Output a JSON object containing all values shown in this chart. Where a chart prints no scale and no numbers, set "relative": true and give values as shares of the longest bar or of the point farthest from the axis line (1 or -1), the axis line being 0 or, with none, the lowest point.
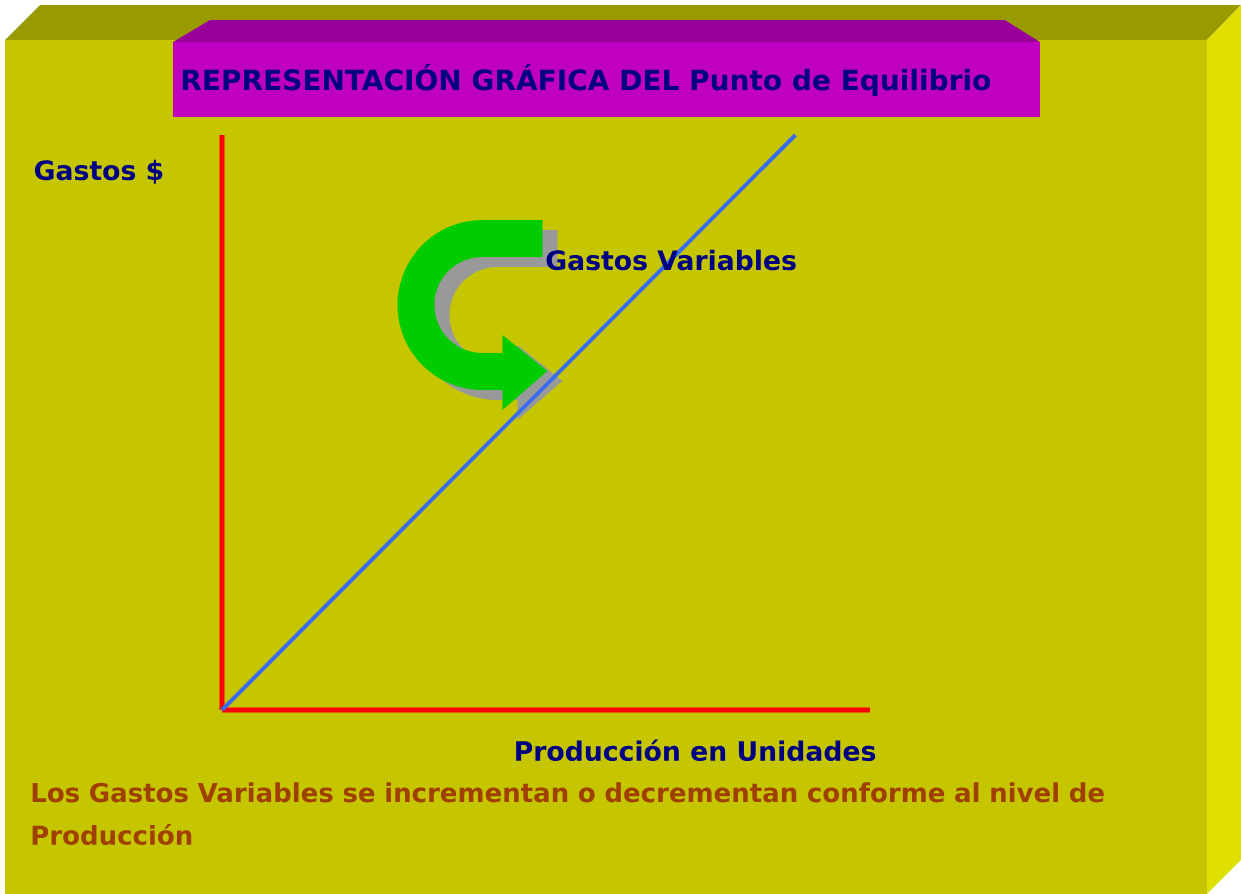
{
  "chart_data": {
    "type": "line",
    "title": "REPRESENTACIÓN GRÁFICA DEL Punto de Equilibrio",
    "xlabel": "Producción en Unidades",
    "ylabel": "Gastos $",
    "categories": [
      null,
      null
    ],
    "series": [
      {
        "name": "Gastos Variables",
        "color": "#3a6cf0",
        "values": [
          0,
          1
        ]
      }
    ],
    "relative": true,
    "annotations": [
      "Los Gastos Variables se incrementan o decrementan conforme al nivel de Producción"
    ]
  }
}
